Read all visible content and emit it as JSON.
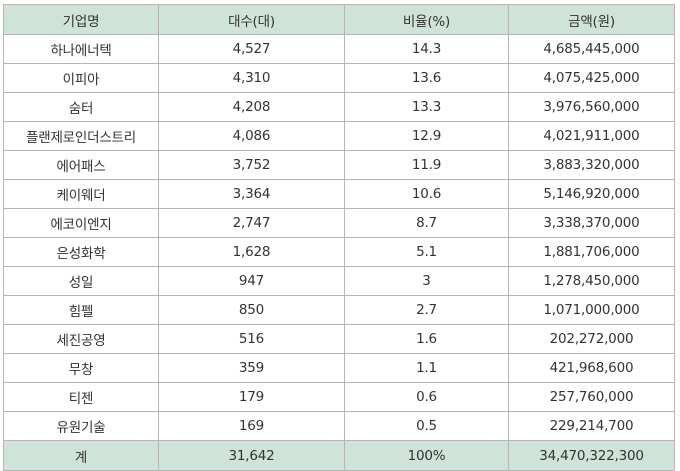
{
  "table": {
    "headers": [
      "기업명",
      "대수(대)",
      "비율(%)",
      "금액(원)"
    ],
    "rows": [
      [
        "하나에너텍",
        "4,527",
        "14.3",
        "4,685,445,000"
      ],
      [
        "이피아",
        "4,310",
        "13.6",
        "4,075,425,000"
      ],
      [
        "숨터",
        "4,208",
        "13.3",
        "3,976,560,000"
      ],
      [
        "플랜제로인더스트리",
        "4,086",
        "12.9",
        "4,021,911,000"
      ],
      [
        "에어패스",
        "3,752",
        "11.9",
        "3,883,320,000"
      ],
      [
        "케이웨더",
        "3,364",
        "10.6",
        "5,146,920,000"
      ],
      [
        "에코이엔지",
        "2,747",
        "8.7",
        "3,338,370,000"
      ],
      [
        "은성화학",
        "1,628",
        "5.1",
        "1,881,706,000"
      ],
      [
        "성일",
        "947",
        "3",
        "1,278,450,000"
      ],
      [
        "힘펠",
        "850",
        "2.7",
        "1,071,000,000"
      ],
      [
        "세진공영",
        "516",
        "1.6",
        "202,272,000"
      ],
      [
        "무창",
        "359",
        "1.1",
        "421,968,600"
      ],
      [
        "티젠",
        "179",
        "0.6",
        "257,760,000"
      ],
      [
        "유원기술",
        "169",
        "0.5",
        "229,214,700"
      ]
    ],
    "total": [
      "계",
      "31,642",
      "100%",
      "34,470,322,300"
    ]
  },
  "colors": {
    "header_bg": "#cfe3d9",
    "border": "#b5b5b5",
    "text": "#333333"
  }
}
